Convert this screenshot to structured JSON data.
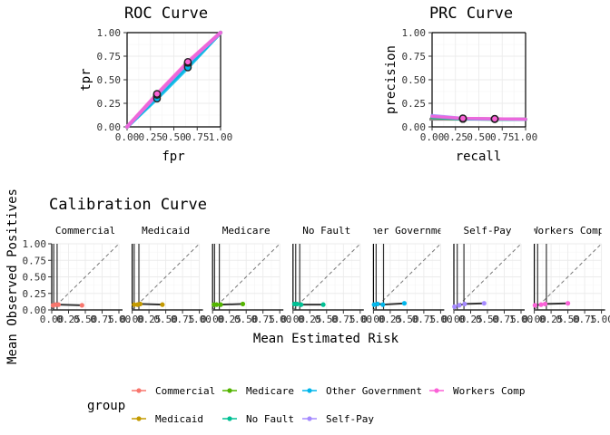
{
  "chart_data": [
    {
      "type": "line",
      "title": "ROC Curve",
      "xlabel": "fpr",
      "ylabel": "tpr",
      "xlim": [
        0,
        1
      ],
      "ylim": [
        0,
        1
      ],
      "xticks": [
        "0.00",
        "0.25",
        "0.50",
        "0.75",
        "1.00"
      ],
      "yticks": [
        "0.00",
        "0.25",
        "0.50",
        "0.75",
        "1.00"
      ],
      "grid": true,
      "series": [
        {
          "name": "Commercial",
          "color": "#F8766D",
          "x": [
            0,
            0.32,
            0.65,
            1
          ],
          "y": [
            0,
            0.34,
            0.68,
            1
          ],
          "points": [
            [
              0.32,
              0.34
            ],
            [
              0.65,
              0.68
            ]
          ]
        },
        {
          "name": "Medicaid",
          "color": "#C49A00",
          "x": [
            0,
            0.32,
            0.65,
            1
          ],
          "y": [
            0,
            0.33,
            0.67,
            1
          ],
          "points": [
            [
              0.32,
              0.33
            ],
            [
              0.65,
              0.67
            ]
          ]
        },
        {
          "name": "Medicare",
          "color": "#53B400",
          "x": [
            0,
            0.32,
            0.65,
            1
          ],
          "y": [
            0,
            0.33,
            0.67,
            1
          ],
          "points": [
            [
              0.32,
              0.33
            ],
            [
              0.65,
              0.67
            ]
          ]
        },
        {
          "name": "No Fault",
          "color": "#00C094",
          "x": [
            0,
            0.32,
            0.65,
            1
          ],
          "y": [
            0,
            0.32,
            0.65,
            1
          ],
          "points": [
            [
              0.32,
              0.32
            ],
            [
              0.65,
              0.65
            ]
          ]
        },
        {
          "name": "Other Government",
          "color": "#00B6EB",
          "x": [
            0,
            0.32,
            0.65,
            1
          ],
          "y": [
            0,
            0.3,
            0.63,
            1
          ],
          "points": [
            [
              0.32,
              0.3
            ],
            [
              0.65,
              0.63
            ]
          ]
        },
        {
          "name": "Self-Pay",
          "color": "#A58AFF",
          "x": [
            0,
            0.32,
            0.65,
            1
          ],
          "y": [
            0,
            0.34,
            0.68,
            1
          ],
          "points": [
            [
              0.32,
              0.34
            ],
            [
              0.65,
              0.68
            ]
          ]
        },
        {
          "name": "Workers Comp",
          "color": "#FB61D7",
          "x": [
            0,
            0.32,
            0.65,
            1
          ],
          "y": [
            0,
            0.35,
            0.69,
            1
          ],
          "points": [
            [
              0.32,
              0.35
            ],
            [
              0.65,
              0.69
            ]
          ]
        }
      ]
    },
    {
      "type": "line",
      "title": "PRC Curve",
      "xlabel": "recall",
      "ylabel": "precision",
      "xlim": [
        0,
        1
      ],
      "ylim": [
        0,
        1
      ],
      "xticks": [
        "0.00",
        "0.25",
        "0.50",
        "0.75",
        "1.00"
      ],
      "yticks": [
        "0.00",
        "0.25",
        "0.50",
        "0.75",
        "1.00"
      ],
      "grid": true,
      "baseline": 0.08,
      "series": [
        {
          "name": "Commercial",
          "color": "#F8766D",
          "x": [
            0,
            0.33,
            0.67,
            1
          ],
          "y": [
            0.1,
            0.09,
            0.085,
            0.08
          ],
          "points": [
            [
              0.33,
              0.09
            ],
            [
              0.67,
              0.085
            ]
          ]
        },
        {
          "name": "Medicaid",
          "color": "#C49A00",
          "x": [
            0,
            0.33,
            0.67,
            1
          ],
          "y": [
            0.1,
            0.085,
            0.083,
            0.08
          ],
          "points": [
            [
              0.33,
              0.085
            ],
            [
              0.67,
              0.083
            ]
          ]
        },
        {
          "name": "Medicare",
          "color": "#53B400",
          "x": [
            0,
            0.33,
            0.67,
            1
          ],
          "y": [
            0.1,
            0.085,
            0.083,
            0.08
          ],
          "points": [
            [
              0.33,
              0.085
            ],
            [
              0.67,
              0.083
            ]
          ]
        },
        {
          "name": "No Fault",
          "color": "#00C094",
          "x": [
            0,
            0.33,
            0.67,
            1
          ],
          "y": [
            0.1,
            0.085,
            0.083,
            0.08
          ],
          "points": [
            [
              0.33,
              0.085
            ],
            [
              0.67,
              0.083
            ]
          ]
        },
        {
          "name": "Other Government",
          "color": "#00B6EB",
          "x": [
            0,
            0.33,
            0.67,
            1
          ],
          "y": [
            0.11,
            0.085,
            0.082,
            0.08
          ],
          "points": [
            [
              0.33,
              0.085
            ],
            [
              0.67,
              0.082
            ]
          ]
        },
        {
          "name": "Self-Pay",
          "color": "#A58AFF",
          "x": [
            0,
            0.33,
            0.67,
            1
          ],
          "y": [
            0.12,
            0.09,
            0.085,
            0.08
          ],
          "points": [
            [
              0.33,
              0.09
            ],
            [
              0.67,
              0.085
            ]
          ]
        },
        {
          "name": "Workers Comp",
          "color": "#FB61D7",
          "x": [
            0,
            0.33,
            0.67,
            1
          ],
          "y": [
            0.11,
            0.09,
            0.085,
            0.082
          ],
          "points": [
            [
              0.33,
              0.09
            ],
            [
              0.67,
              0.085
            ]
          ]
        }
      ]
    },
    {
      "type": "line",
      "title": "Calibration Curve",
      "xlabel": "Mean Estimated Risk",
      "ylabel": "Mean Observed Positives",
      "xlim": [
        0,
        1
      ],
      "ylim": [
        0,
        1
      ],
      "xticks": [
        "0.00",
        "0.25",
        "0.50",
        "0.75",
        "1.00"
      ],
      "yticks": [
        "0.00",
        "0.25",
        "0.50",
        "0.75",
        "1.00"
      ],
      "grid": true,
      "facets": [
        {
          "label": "Commercial",
          "color": "#F8766D",
          "vlines": [
            0.03,
            0.08
          ],
          "x": [
            0.02,
            0.06,
            0.1,
            0.45
          ],
          "y": [
            0.07,
            0.08,
            0.08,
            0.07
          ]
        },
        {
          "label": "Medicaid",
          "color": "#C49A00",
          "vlines": [
            0.03,
            0.1
          ],
          "x": [
            0.03,
            0.08,
            0.12,
            0.45
          ],
          "y": [
            0.08,
            0.08,
            0.09,
            0.08
          ]
        },
        {
          "label": "Medicare",
          "color": "#53B400",
          "vlines": [
            0.03,
            0.1
          ],
          "x": [
            0.02,
            0.06,
            0.12,
            0.45
          ],
          "y": [
            0.08,
            0.08,
            0.08,
            0.09
          ]
        },
        {
          "label": "No Fault",
          "color": "#00C094",
          "vlines": [
            0.04,
            0.1
          ],
          "x": [
            0.02,
            0.06,
            0.12,
            0.45
          ],
          "y": [
            0.09,
            0.09,
            0.08,
            0.08
          ]
        },
        {
          "label": "Other Government",
          "color": "#00B6EB",
          "vlines": [
            0.04,
            0.15
          ],
          "x": [
            0.01,
            0.06,
            0.14,
            0.46
          ],
          "y": [
            0.08,
            0.09,
            0.08,
            0.1
          ]
        },
        {
          "label": "Self-Pay",
          "color": "#A58AFF",
          "vlines": [
            0.05,
            0.15
          ],
          "x": [
            0.01,
            0.08,
            0.16,
            0.45
          ],
          "y": [
            0.05,
            0.07,
            0.09,
            0.1
          ]
        },
        {
          "label": "Workers Comp",
          "color": "#FB61D7",
          "vlines": [
            0.05,
            0.18
          ],
          "x": [
            0.01,
            0.1,
            0.16,
            0.5
          ],
          "y": [
            0.07,
            0.08,
            0.09,
            0.1
          ]
        }
      ]
    }
  ],
  "legend": {
    "title": "group",
    "position": "bottom",
    "items": [
      {
        "label": "Commercial",
        "color": "#F8766D"
      },
      {
        "label": "Medicaid",
        "color": "#C49A00"
      },
      {
        "label": "Medicare",
        "color": "#53B400"
      },
      {
        "label": "No Fault",
        "color": "#00C094"
      },
      {
        "label": "Other Government",
        "color": "#00B6EB"
      },
      {
        "label": "Self-Pay",
        "color": "#A58AFF"
      },
      {
        "label": "Workers Comp",
        "color": "#FB61D7"
      }
    ]
  }
}
